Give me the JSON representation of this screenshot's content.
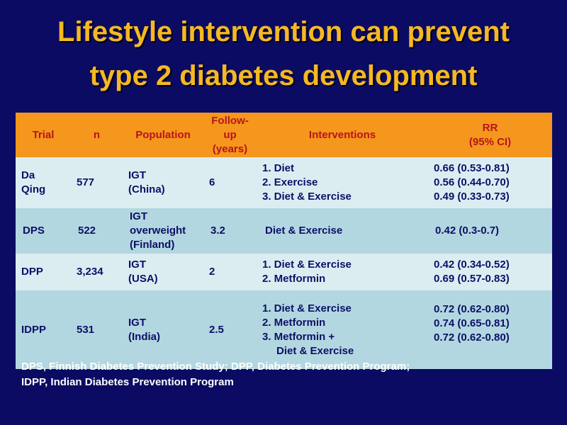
{
  "title": {
    "line1": "Lifestyle intervention can prevent",
    "line2": "type 2 diabetes development"
  },
  "table": {
    "headers": {
      "trial": "Trial",
      "n": "n",
      "population": "Population",
      "followup": [
        "Follow-",
        "up",
        "(years)"
      ],
      "interventions": "Interventions",
      "rr": [
        "RR",
        "(95% CI)"
      ]
    },
    "rows": [
      {
        "trial": [
          "Da",
          "Qing"
        ],
        "n": "577",
        "population": [
          "IGT",
          "(China)"
        ],
        "followup": "6",
        "interventions": [
          "1. Diet",
          "2. Exercise",
          "3. Diet & Exercise"
        ],
        "rr": [
          "0.66 (0.53-0.81)",
          "0.56 (0.44-0.70)",
          "0.49 (0.33-0.73)"
        ]
      },
      {
        "trial": [
          "DPS"
        ],
        "n": "522",
        "population": [
          "IGT",
          "overweight",
          "(Finland)"
        ],
        "followup": "3.2",
        "interventions": [
          "Diet & Exercise"
        ],
        "rr": [
          "0.42 (0.3-0.7)"
        ]
      },
      {
        "trial": [
          "DPP"
        ],
        "n": "3,234",
        "population": [
          "IGT",
          "(USA)"
        ],
        "followup": "2",
        "interventions": [
          "1. Diet & Exercise",
          "2. Metformin"
        ],
        "rr": [
          "0.42 (0.34-0.52)",
          "0.69 (0.57-0.83)"
        ]
      },
      {
        "trial": [
          "IDPP"
        ],
        "n": "531",
        "population": [
          "IGT",
          "(India)"
        ],
        "followup": "2.5",
        "interventions": [
          "1. Diet & Exercise",
          "2. Metformin",
          "3. Metformin +",
          "Diet & Exercise"
        ],
        "rr": [
          "0.72 (0.62-0.80)",
          "0.74 (0.65-0.81)",
          "0.72 (0.62-0.80)"
        ]
      }
    ]
  },
  "footnote": {
    "line1": "DPS, Finnish Diabetes Prevention Study; DPP, Diabetes Prevention Program;",
    "line2": "IDPP, Indian Diabetes Prevention Program"
  },
  "colors": {
    "background": "#0b0b63",
    "title": "#f5b823",
    "header_bg": "#f5961d",
    "header_text": "#b8141e",
    "row_light": "#dcedf2",
    "row_dark": "#b3d7e0",
    "cell_text": "#0c1066"
  }
}
